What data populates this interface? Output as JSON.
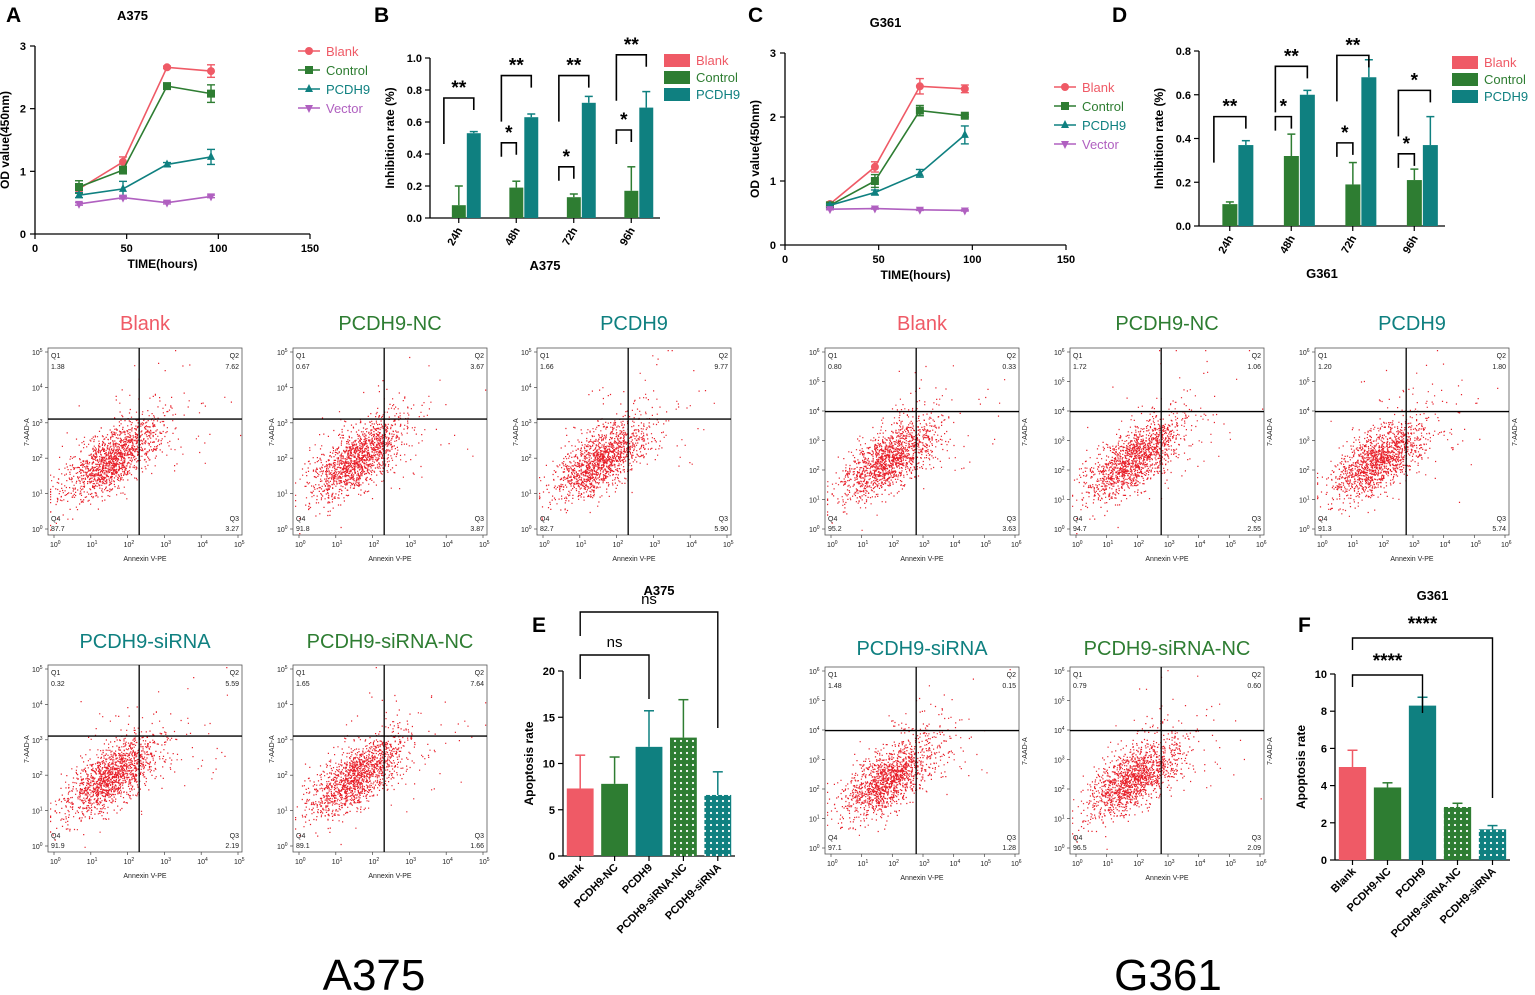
{
  "colors": {
    "blank": "#ef5a66",
    "control": "#2e7d32",
    "pcdh9": "#0f8080",
    "vector": "#b060c0",
    "dot": "#e8202a"
  },
  "bottom_labels": {
    "left": "A375",
    "right": "G361"
  },
  "panel_labels": {
    "A": "A",
    "B": "B",
    "C": "C",
    "D": "D",
    "E": "E",
    "F": "F"
  },
  "chart_data": [
    {
      "id": "A",
      "type": "line",
      "title": "A375",
      "xlabel": "TIME(hours)",
      "ylabel": "OD value(450nm)",
      "xlim": [
        0,
        150
      ],
      "ylim": [
        0,
        3
      ],
      "xticks": [
        0,
        50,
        100,
        150
      ],
      "yticks": [
        0,
        1,
        2,
        3
      ],
      "legend": "right",
      "series": [
        {
          "name": "Blank",
          "color": "#ef5a66",
          "marker": "circle",
          "x": [
            24,
            48,
            72,
            96
          ],
          "y": [
            0.72,
            1.15,
            2.66,
            2.6
          ],
          "err": [
            0.05,
            0.08,
            0.02,
            0.1
          ]
        },
        {
          "name": "Control",
          "color": "#2e7d32",
          "marker": "square",
          "x": [
            24,
            48,
            72,
            96
          ],
          "y": [
            0.75,
            1.02,
            2.36,
            2.24
          ],
          "err": [
            0.1,
            0.06,
            0.03,
            0.14
          ]
        },
        {
          "name": "PCDH9",
          "color": "#0f8080",
          "marker": "triangle",
          "x": [
            24,
            48,
            72,
            96
          ],
          "y": [
            0.62,
            0.72,
            1.11,
            1.23
          ],
          "err": [
            0.04,
            0.12,
            0.03,
            0.12
          ]
        },
        {
          "name": "Vector",
          "color": "#b060c0",
          "marker": "invtriangle",
          "x": [
            24,
            48,
            72,
            96
          ],
          "y": [
            0.48,
            0.58,
            0.5,
            0.6
          ],
          "err": [
            0.02,
            0.02,
            0.02,
            0.02
          ]
        }
      ]
    },
    {
      "id": "B",
      "type": "bar",
      "title": "A375",
      "xlabel": "",
      "ylabel": "Inhibition rate (%)",
      "ylim": [
        0,
        1.0
      ],
      "yticks": [
        0.0,
        0.2,
        0.4,
        0.6,
        0.8,
        1.0
      ],
      "categories": [
        "24h",
        "48h",
        "72h",
        "96h"
      ],
      "legend": "right",
      "series": [
        {
          "name": "Blank",
          "color": "#ef5a66",
          "values": [
            0,
            0,
            0,
            0
          ],
          "err": [
            0,
            0,
            0,
            0
          ]
        },
        {
          "name": "Control",
          "color": "#2e7d32",
          "values": [
            0.08,
            0.19,
            0.13,
            0.17
          ],
          "err": [
            0.12,
            0.04,
            0.02,
            0.15
          ]
        },
        {
          "name": "PCDH9",
          "color": "#0f8080",
          "values": [
            0.53,
            0.63,
            0.72,
            0.69
          ],
          "err": [
            0.01,
            0.02,
            0.04,
            0.1
          ]
        }
      ],
      "significance": [
        {
          "from": 0,
          "to": 2,
          "cat": 0,
          "label": "**",
          "y": 0.75
        },
        {
          "from": 0,
          "to": 2,
          "cat": 1,
          "label": "**",
          "y": 0.89
        },
        {
          "from": 0,
          "to": 1,
          "cat": 1,
          "label": "*",
          "y": 0.47
        },
        {
          "from": 0,
          "to": 2,
          "cat": 2,
          "label": "**",
          "y": 0.89
        },
        {
          "from": 0,
          "to": 1,
          "cat": 2,
          "label": "*",
          "y": 0.32
        },
        {
          "from": 0,
          "to": 2,
          "cat": 3,
          "label": "**",
          "y": 1.02
        },
        {
          "from": 0,
          "to": 1,
          "cat": 3,
          "label": "*",
          "y": 0.55
        }
      ]
    },
    {
      "id": "C",
      "type": "line",
      "title": "G361",
      "xlabel": "TIME(hours)",
      "ylabel": "OD value(450nm)",
      "xlim": [
        0,
        150
      ],
      "ylim": [
        0,
        3
      ],
      "xticks": [
        0,
        50,
        100,
        150
      ],
      "yticks": [
        0,
        1,
        2,
        3
      ],
      "legend": "right",
      "series": [
        {
          "name": "Blank",
          "color": "#ef5a66",
          "marker": "circle",
          "x": [
            24,
            48,
            72,
            96
          ],
          "y": [
            0.64,
            1.22,
            2.48,
            2.44
          ],
          "err": [
            0.03,
            0.08,
            0.12,
            0.06
          ]
        },
        {
          "name": "Control",
          "color": "#2e7d32",
          "marker": "square",
          "x": [
            24,
            48,
            72,
            96
          ],
          "y": [
            0.62,
            1.0,
            2.1,
            2.02
          ],
          "err": [
            0.03,
            0.1,
            0.08,
            0.02
          ]
        },
        {
          "name": "PCDH9",
          "color": "#0f8080",
          "marker": "triangle",
          "x": [
            24,
            48,
            72,
            96
          ],
          "y": [
            0.62,
            0.82,
            1.12,
            1.72
          ],
          "err": [
            0.02,
            0.04,
            0.06,
            0.14
          ]
        },
        {
          "name": "Vector",
          "color": "#b060c0",
          "marker": "invtriangle",
          "x": [
            24,
            48,
            72,
            96
          ],
          "y": [
            0.56,
            0.57,
            0.55,
            0.54
          ],
          "err": [
            0.01,
            0.01,
            0.01,
            0.01
          ]
        }
      ]
    },
    {
      "id": "D",
      "type": "bar",
      "title": "G361",
      "xlabel": "",
      "ylabel": "Inhibition rate (%)",
      "ylim": [
        0,
        0.8
      ],
      "yticks": [
        0.0,
        0.2,
        0.4,
        0.6,
        0.8
      ],
      "categories": [
        "24h",
        "48h",
        "72h",
        "96h"
      ],
      "legend": "right",
      "series": [
        {
          "name": "Blank",
          "color": "#ef5a66",
          "values": [
            0,
            0,
            0,
            0
          ],
          "err": [
            0,
            0,
            0,
            0
          ]
        },
        {
          "name": "Control",
          "color": "#2e7d32",
          "values": [
            0.1,
            0.32,
            0.19,
            0.21
          ],
          "err": [
            0.01,
            0.1,
            0.1,
            0.05
          ]
        },
        {
          "name": "PCDH9",
          "color": "#0f8080",
          "values": [
            0.37,
            0.6,
            0.68,
            0.37
          ],
          "err": [
            0.02,
            0.02,
            0.08,
            0.13
          ]
        }
      ],
      "significance": [
        {
          "from": 0,
          "to": 2,
          "cat": 0,
          "label": "**",
          "y": 0.5
        },
        {
          "from": 0,
          "to": 2,
          "cat": 1,
          "label": "**",
          "y": 0.73
        },
        {
          "from": 0,
          "to": 1,
          "cat": 1,
          "label": "*",
          "y": 0.5
        },
        {
          "from": 0,
          "to": 2,
          "cat": 2,
          "label": "**",
          "y": 0.78
        },
        {
          "from": 0,
          "to": 1,
          "cat": 2,
          "label": "*",
          "y": 0.38
        },
        {
          "from": 0,
          "to": 2,
          "cat": 3,
          "label": "*",
          "y": 0.62
        },
        {
          "from": 0,
          "to": 1,
          "cat": 3,
          "label": "*",
          "y": 0.33
        }
      ]
    },
    {
      "id": "E",
      "type": "bar",
      "title": "A375",
      "xlabel": "",
      "ylabel": "Apoptosis rate",
      "ylim": [
        0,
        20
      ],
      "yticks": [
        0,
        5,
        10,
        15,
        20
      ],
      "categories": [
        "Blank",
        "PCDH9-NC",
        "PCDH9",
        "PCDH9-siRNA-NC",
        "PCDH9-siRNA"
      ],
      "values": [
        7.3,
        7.8,
        11.8,
        12.8,
        6.6
      ],
      "err": [
        3.6,
        2.9,
        3.9,
        4.1,
        2.5
      ],
      "colors": [
        "#ef5a66",
        "#2e7d32",
        "#0f8080",
        "#2e7d32",
        "#0f8080"
      ],
      "patterns": [
        "none",
        "none",
        "none",
        "dots",
        "dots"
      ],
      "significance": [
        {
          "from": 0,
          "to": 2,
          "label": "ns",
          "y": 19
        },
        {
          "from": 0,
          "to": 4,
          "label": "ns",
          "y": 24
        }
      ]
    },
    {
      "id": "F",
      "type": "bar",
      "title": "G361",
      "xlabel": "",
      "ylabel": "Apoptosis rate",
      "ylim": [
        0,
        10
      ],
      "yticks": [
        0,
        2,
        4,
        6,
        8,
        10
      ],
      "categories": [
        "Blank",
        "PCDH9-NC",
        "PCDH9",
        "PCDH9-siRNA-NC",
        "PCDH9-siRNA"
      ],
      "values": [
        5.0,
        3.9,
        8.3,
        2.85,
        1.65
      ],
      "err": [
        0.9,
        0.25,
        0.45,
        0.2,
        0.2
      ],
      "colors": [
        "#ef5a66",
        "#2e7d32",
        "#0f8080",
        "#2e7d32",
        "#0f8080"
      ],
      "patterns": [
        "none",
        "none",
        "none",
        "dots",
        "dots"
      ],
      "significance": [
        {
          "from": 0,
          "to": 2,
          "label": "****",
          "y": 11.8
        },
        {
          "from": 0,
          "to": 4,
          "label": "****",
          "y": 12.4
        }
      ]
    }
  ],
  "facs": {
    "xlabel": "Annexin V-PE",
    "ylabel": "7-AAD-A",
    "quadrant_names": [
      "Q1",
      "Q2",
      "Q3",
      "Q4"
    ],
    "x_exp": [
      "0",
      "1",
      "2",
      "3",
      "4",
      "5"
    ],
    "y_exp": [
      "0",
      "1",
      "2",
      "3",
      "4",
      "5"
    ],
    "y_exp_g361": [
      "0",
      "1",
      "2",
      "3",
      "4",
      "5",
      "6"
    ],
    "x_exp_g361": [
      "0",
      "1",
      "2",
      "3",
      "4",
      "5",
      "6"
    ],
    "plots": [
      {
        "title": "Blank",
        "color": "#ef5a66",
        "q1": "1.38",
        "q2": "7.62",
        "q3": "3.27",
        "q4": "87.7",
        "cell": "A375"
      },
      {
        "title": "PCDH9-NC",
        "color": "#2e7d32",
        "q1": "0.67",
        "q2": "3.67",
        "q3": "3.87",
        "q4": "91.8",
        "cell": "A375"
      },
      {
        "title": "PCDH9",
        "color": "#0f8080",
        "q1": "1.66",
        "q2": "9.77",
        "q3": "5.90",
        "q4": "82.7",
        "cell": "A375"
      },
      {
        "title": "Blank",
        "color": "#ef5a66",
        "q1": "0.80",
        "q2": "0.33",
        "q3": "3.63",
        "q4": "95.2",
        "cell": "G361"
      },
      {
        "title": "PCDH9-NC",
        "color": "#2e7d32",
        "q1": "1.72",
        "q2": "1.06",
        "q3": "2.55",
        "q4": "94.7",
        "cell": "G361"
      },
      {
        "title": "PCDH9",
        "color": "#0f8080",
        "q1": "1.20",
        "q2": "1.80",
        "q3": "5.74",
        "q4": "91.3",
        "cell": "G361"
      },
      {
        "title": "PCDH9-siRNA",
        "color": "#0f8080",
        "q1": "0.32",
        "q2": "5.59",
        "q3": "2.19",
        "q4": "91.9",
        "cell": "A375"
      },
      {
        "title": "PCDH9-siRNA-NC",
        "color": "#2e7d32",
        "q1": "1.65",
        "q2": "7.64",
        "q3": "1.66",
        "q4": "89.1",
        "cell": "A375"
      },
      {
        "title": "PCDH9-siRNA",
        "color": "#0f8080",
        "q1": "1.48",
        "q2": "0.15",
        "q3": "1.28",
        "q4": "97.1",
        "cell": "G361"
      },
      {
        "title": "PCDH9-siRNA-NC",
        "color": "#2e7d32",
        "q1": "0.79",
        "q2": "0.60",
        "q3": "2.09",
        "q4": "96.5",
        "cell": "G361"
      }
    ]
  }
}
